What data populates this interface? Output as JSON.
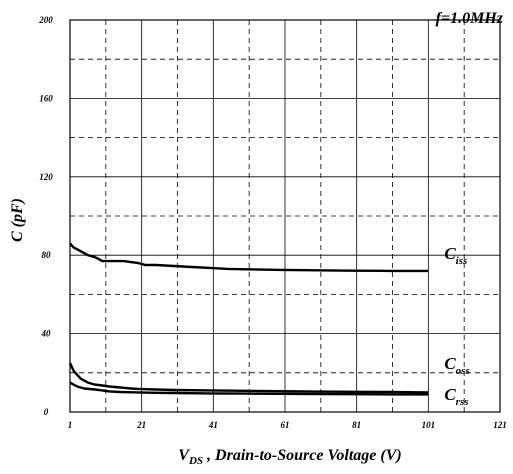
{
  "chart_data": {
    "type": "line",
    "annotation": "f=1.0MHz",
    "xlabel": {
      "prefix": "V",
      "sub": "DS",
      "rest": " , Drain-to-Source Voltage (V)"
    },
    "ylabel": "C (pF)",
    "xlim": [
      1,
      121
    ],
    "ylim": [
      0,
      200
    ],
    "x_ticks": [
      1,
      21,
      41,
      61,
      81,
      101,
      121
    ],
    "y_ticks": [
      0,
      40,
      80,
      120,
      160,
      200
    ],
    "grid": true,
    "series": [
      {
        "name": "iss",
        "label_main": "C",
        "label_sub": "iss",
        "x": [
          1,
          2,
          3,
          4,
          5,
          6,
          7,
          8,
          9,
          10,
          12,
          14,
          16,
          18,
          20,
          22,
          25,
          30,
          35,
          40,
          45,
          50,
          60,
          70,
          80,
          90,
          101
        ],
        "y": [
          86,
          84,
          83,
          82,
          81,
          80,
          79.5,
          79,
          78,
          77,
          77,
          77,
          77,
          76.5,
          76,
          75,
          75,
          74.5,
          74,
          73.5,
          73,
          72.8,
          72.5,
          72.3,
          72.1,
          72,
          72
        ]
      },
      {
        "name": "oss",
        "label_main": "C",
        "label_sub": "oss",
        "x": [
          1,
          2,
          3,
          4,
          5,
          6,
          8,
          10,
          12,
          15,
          18,
          20,
          25,
          30,
          40,
          50,
          60,
          70,
          80,
          90,
          101
        ],
        "y": [
          25,
          21,
          19,
          17,
          16,
          15,
          14,
          13.5,
          13,
          12.5,
          12,
          11.8,
          11.5,
          11.2,
          11,
          10.8,
          10.6,
          10.4,
          10.3,
          10.2,
          10
        ]
      },
      {
        "name": "rss",
        "label_main": "C",
        "label_sub": "rss",
        "x": [
          1,
          2,
          3,
          5,
          8,
          10,
          12,
          15,
          20,
          25,
          30,
          40,
          50,
          60,
          70,
          80,
          90,
          101
        ],
        "y": [
          15,
          14,
          13,
          12,
          11.5,
          11,
          10.5,
          10.2,
          10,
          9.8,
          9.7,
          9.5,
          9.4,
          9.3,
          9.2,
          9.1,
          9,
          9
        ]
      }
    ]
  }
}
